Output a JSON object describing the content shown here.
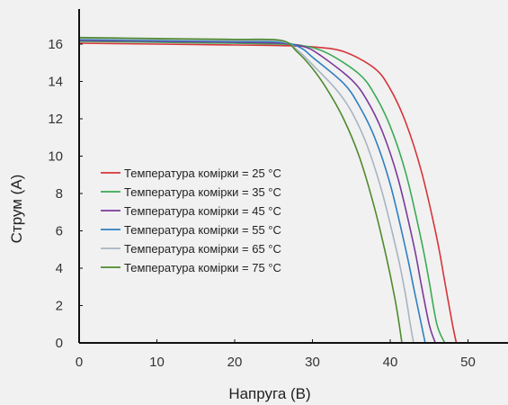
{
  "chart_data": {
    "type": "line",
    "title": "",
    "xlabel": "Напруга (В)",
    "ylabel": "Струм (А)",
    "xlim": [
      0,
      55
    ],
    "ylim": [
      0,
      17
    ],
    "xticks": [
      "0",
      "10",
      "20",
      "30",
      "40",
      "50"
    ],
    "yticks": [
      "0",
      "2",
      "4",
      "6",
      "8",
      "10",
      "12",
      "14",
      "16"
    ],
    "grid": false,
    "legend_position": "center-left",
    "series": [
      {
        "name": "Температура комірки = 25 °C",
        "color": "#d6343a",
        "x": [
          0,
          10,
          20,
          26,
          30,
          34,
          38,
          40,
          42,
          44,
          46,
          47,
          48,
          48.5
        ],
        "y": [
          16.05,
          16.0,
          15.95,
          15.92,
          15.85,
          15.6,
          14.7,
          13.6,
          11.8,
          9.2,
          5.6,
          3.3,
          1.0,
          0
        ]
      },
      {
        "name": "Температура комірки = 35 °C",
        "color": "#3aaa55",
        "x": [
          0,
          10,
          20,
          26,
          29,
          32,
          36,
          38,
          40,
          42,
          44,
          45,
          46,
          47
        ],
        "y": [
          16.15,
          16.1,
          16.05,
          16.0,
          15.9,
          15.5,
          14.4,
          13.3,
          11.6,
          9.1,
          5.5,
          3.3,
          1.0,
          0
        ]
      },
      {
        "name": "Температура комірки = 45 °C",
        "color": "#7a3a9a",
        "x": [
          0,
          10,
          20,
          26,
          29,
          31,
          35,
          37,
          39,
          41,
          43,
          44,
          45,
          45.8
        ],
        "y": [
          16.2,
          16.15,
          16.1,
          16.05,
          15.85,
          15.4,
          14.1,
          13.0,
          11.3,
          8.8,
          5.3,
          3.1,
          1.0,
          0
        ]
      },
      {
        "name": "Температура комірки = 55 °C",
        "color": "#2f7fc1",
        "x": [
          0,
          10,
          20,
          26,
          28.5,
          30,
          34,
          36,
          38,
          40,
          42,
          43,
          44,
          44.5
        ],
        "y": [
          16.25,
          16.2,
          16.15,
          16.1,
          15.8,
          15.3,
          13.9,
          12.7,
          11.0,
          8.5,
          5.0,
          3.0,
          1.0,
          0
        ]
      },
      {
        "name": "Температура комірки = 65 °C",
        "color": "#a8b4c2",
        "x": [
          0,
          10,
          20,
          26,
          28,
          30,
          33,
          35,
          37,
          39,
          41,
          42,
          42.5,
          43
        ],
        "y": [
          16.3,
          16.25,
          16.2,
          16.15,
          15.7,
          14.9,
          13.6,
          12.4,
          10.6,
          8.0,
          4.6,
          2.5,
          1.2,
          0
        ]
      },
      {
        "name": "Температура комірки = 75 °C",
        "color": "#4e8a2e",
        "x": [
          0,
          10,
          20,
          26,
          28,
          30,
          32,
          34,
          36,
          38,
          39.5,
          40.5,
          41,
          41.5
        ],
        "y": [
          16.35,
          16.3,
          16.25,
          16.2,
          15.6,
          14.7,
          13.5,
          12.0,
          10.0,
          7.2,
          4.6,
          2.6,
          1.4,
          0
        ]
      }
    ]
  }
}
